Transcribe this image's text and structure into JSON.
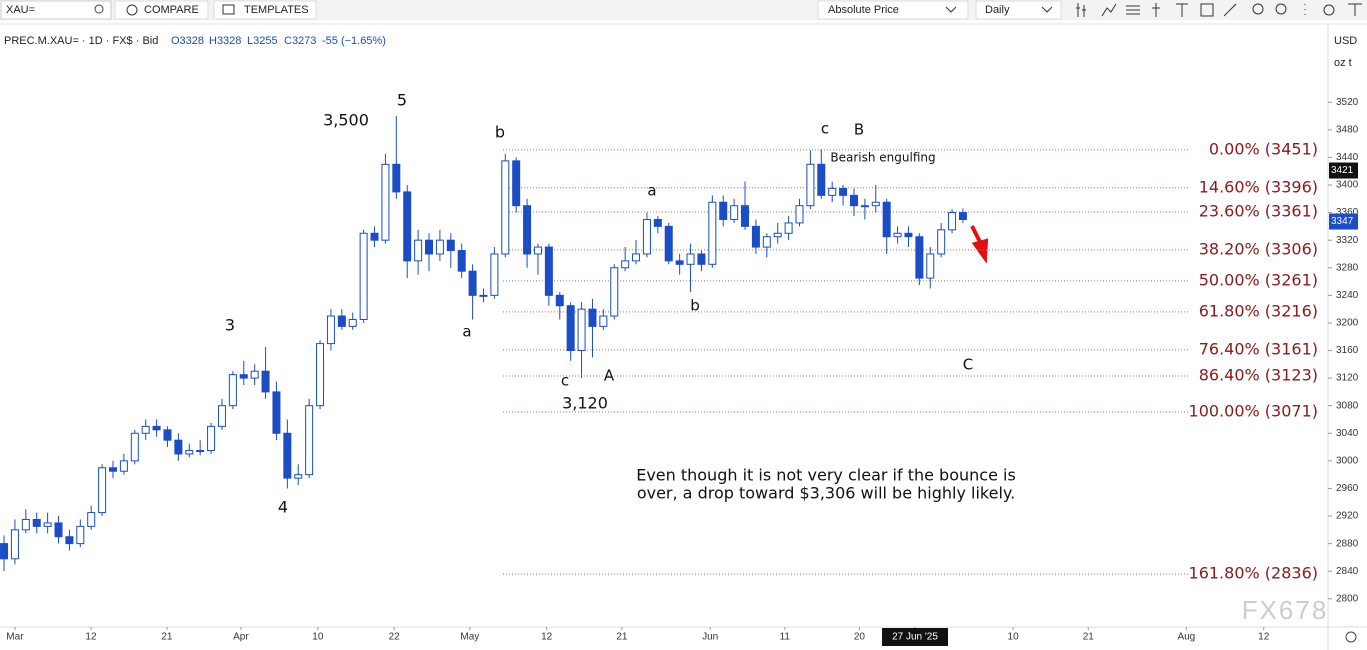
{
  "toolbar": {
    "symbol": "XAU=",
    "compare": "COMPARE",
    "templates": "TEMPLATES",
    "price_mode": "Absolute Price",
    "interval": "Daily",
    "currency": "USD",
    "unit": "oz t"
  },
  "legend": {
    "instrument": "PREC.M.XAU= · 1D · FX$ · Bid",
    "open": "O3328",
    "high": "H3328",
    "low": "L3255",
    "close": "C3273",
    "change": "-55 (−1.65%)"
  },
  "watermark": "FX678",
  "chart_data": {
    "type": "candlestick",
    "color": "#1a4dc6",
    "grid": false,
    "ylim": [
      2762,
      3632
    ],
    "yticks": [
      2800,
      2840,
      2880,
      2920,
      2960,
      3000,
      3040,
      3080,
      3120,
      3160,
      3200,
      3240,
      3280,
      3320,
      3360,
      3400,
      3440,
      3480,
      3520
    ],
    "xlim": [
      -0.37,
      121.5
    ],
    "xticks": [
      {
        "value": 1.0,
        "label": "Mar"
      },
      {
        "value": 7.98,
        "label": "12"
      },
      {
        "value": 14.95,
        "label": "21"
      },
      {
        "value": 21.74,
        "label": "Apr"
      },
      {
        "value": 28.8,
        "label": "10"
      },
      {
        "value": 35.8,
        "label": "22"
      },
      {
        "value": 42.75,
        "label": "May"
      },
      {
        "value": 49.8,
        "label": "12"
      },
      {
        "value": 56.7,
        "label": "21"
      },
      {
        "value": 64.8,
        "label": "Jun"
      },
      {
        "value": 71.65,
        "label": "11"
      },
      {
        "value": 78.5,
        "label": "20"
      },
      {
        "value": 83.6,
        "label": "27 Jun '25",
        "highlight": true
      },
      {
        "value": 92.6,
        "label": "10"
      },
      {
        "value": 99.5,
        "label": "21"
      },
      {
        "value": 108.5,
        "label": "Aug"
      },
      {
        "value": 115.6,
        "label": "12"
      }
    ],
    "ohlc": [
      [
        2880,
        2892,
        2840,
        2858
      ],
      [
        2858,
        2915,
        2850,
        2900
      ],
      [
        2900,
        2930,
        2895,
        2915
      ],
      [
        2915,
        2925,
        2895,
        2905
      ],
      [
        2905,
        2925,
        2895,
        2910
      ],
      [
        2910,
        2920,
        2880,
        2890
      ],
      [
        2890,
        2900,
        2870,
        2880
      ],
      [
        2880,
        2915,
        2875,
        2905
      ],
      [
        2905,
        2935,
        2900,
        2925
      ],
      [
        2925,
        2995,
        2920,
        2990
      ],
      [
        2990,
        3000,
        2975,
        2985
      ],
      [
        2985,
        3010,
        2980,
        3000
      ],
      [
        3000,
        3045,
        2995,
        3040
      ],
      [
        3040,
        3060,
        3030,
        3050
      ],
      [
        3050,
        3060,
        3035,
        3045
      ],
      [
        3045,
        3050,
        3020,
        3030
      ],
      [
        3030,
        3040,
        3000,
        3010
      ],
      [
        3010,
        3025,
        3005,
        3015
      ],
      [
        3015,
        3030,
        3008,
        3015
      ],
      [
        3015,
        3055,
        3010,
        3050
      ],
      [
        3050,
        3090,
        3045,
        3080
      ],
      [
        3080,
        3130,
        3075,
        3125
      ],
      [
        3125,
        3145,
        3110,
        3120
      ],
      [
        3120,
        3140,
        3110,
        3130
      ],
      [
        3130,
        3165,
        3090,
        3100
      ],
      [
        3100,
        3115,
        3030,
        3040
      ],
      [
        3040,
        3060,
        2960,
        2975
      ],
      [
        2975,
        2995,
        2965,
        2980
      ],
      [
        2980,
        3090,
        2975,
        3080
      ],
      [
        3080,
        3175,
        3075,
        3170
      ],
      [
        3170,
        3220,
        3160,
        3210
      ],
      [
        3210,
        3220,
        3190,
        3195
      ],
      [
        3195,
        3215,
        3190,
        3205
      ],
      [
        3205,
        3335,
        3200,
        3330
      ],
      [
        3330,
        3340,
        3310,
        3320
      ],
      [
        3320,
        3445,
        3315,
        3430
      ],
      [
        3430,
        3500,
        3380,
        3390
      ],
      [
        3390,
        3400,
        3265,
        3290
      ],
      [
        3290,
        3335,
        3270,
        3320
      ],
      [
        3320,
        3330,
        3275,
        3300
      ],
      [
        3300,
        3335,
        3290,
        3320
      ],
      [
        3320,
        3330,
        3280,
        3305
      ],
      [
        3305,
        3315,
        3265,
        3275
      ],
      [
        3275,
        3285,
        3205,
        3240
      ],
      [
        3240,
        3250,
        3230,
        3240
      ],
      [
        3240,
        3310,
        3235,
        3300
      ],
      [
        3300,
        3445,
        3295,
        3435
      ],
      [
        3435,
        3440,
        3360,
        3370
      ],
      [
        3370,
        3380,
        3280,
        3300
      ],
      [
        3300,
        3315,
        3270,
        3310
      ],
      [
        3310,
        3315,
        3225,
        3240
      ],
      [
        3240,
        3245,
        3205,
        3225
      ],
      [
        3225,
        3230,
        3145,
        3160
      ],
      [
        3160,
        3230,
        3120,
        3220
      ],
      [
        3220,
        3235,
        3150,
        3195
      ],
      [
        3195,
        3220,
        3190,
        3210
      ],
      [
        3210,
        3285,
        3205,
        3280
      ],
      [
        3280,
        3310,
        3275,
        3290
      ],
      [
        3290,
        3320,
        3285,
        3300
      ],
      [
        3300,
        3360,
        3295,
        3350
      ],
      [
        3350,
        3355,
        3330,
        3340
      ],
      [
        3340,
        3345,
        3285,
        3290
      ],
      [
        3290,
        3300,
        3270,
        3285
      ],
      [
        3285,
        3315,
        3245,
        3300
      ],
      [
        3300,
        3305,
        3275,
        3285
      ],
      [
        3285,
        3385,
        3280,
        3375
      ],
      [
        3375,
        3385,
        3340,
        3350
      ],
      [
        3350,
        3380,
        3345,
        3370
      ],
      [
        3370,
        3405,
        3335,
        3340
      ],
      [
        3340,
        3350,
        3300,
        3310
      ],
      [
        3310,
        3330,
        3295,
        3325
      ],
      [
        3325,
        3345,
        3315,
        3330
      ],
      [
        3330,
        3355,
        3320,
        3345
      ],
      [
        3345,
        3380,
        3340,
        3370
      ],
      [
        3370,
        3450,
        3365,
        3430
      ],
      [
        3430,
        3452,
        3380,
        3385
      ],
      [
        3385,
        3405,
        3375,
        3395
      ],
      [
        3395,
        3400,
        3370,
        3385
      ],
      [
        3385,
        3395,
        3355,
        3370
      ],
      [
        3370,
        3380,
        3350,
        3370
      ],
      [
        3370,
        3400,
        3360,
        3375
      ],
      [
        3375,
        3380,
        3300,
        3325
      ],
      [
        3325,
        3340,
        3315,
        3330
      ],
      [
        3330,
        3340,
        3310,
        3325
      ],
      [
        3325,
        3330,
        3255,
        3265
      ],
      [
        3265,
        3310,
        3250,
        3300
      ],
      [
        3300,
        3345,
        3295,
        3335
      ],
      [
        3335,
        3365,
        3330,
        3360
      ],
      [
        3360,
        3366,
        3345,
        3350
      ]
    ],
    "fib_levels": [
      {
        "value": 3451,
        "label": "0.00% (3451)"
      },
      {
        "value": 3396,
        "label": "14.60% (3396)"
      },
      {
        "value": 3361,
        "label": "23.60% (3361)"
      },
      {
        "value": 3306,
        "label": "38.20% (3306)"
      },
      {
        "value": 3261,
        "label": "50.00% (3261)"
      },
      {
        "value": 3216,
        "label": "61.80% (3216)"
      },
      {
        "value": 3161,
        "label": "76.40% (3161)"
      },
      {
        "value": 3123,
        "label": "86.40% (3123)"
      },
      {
        "value": 3071,
        "label": "100.00% (3071)"
      },
      {
        "value": 2836,
        "label": "161.80% (2836)"
      }
    ],
    "price_markers": [
      {
        "value": 3421,
        "color": "#111111"
      },
      {
        "value": 3347,
        "color": "#1a4dc6"
      }
    ],
    "annotations": [
      "5",
      "3,500",
      "b",
      "c",
      "B",
      "Bearish engulfing",
      "a",
      "3",
      "a",
      "b",
      "c",
      "A",
      "3,120",
      "4",
      "C"
    ],
    "note": [
      "Even though it is not very clear if the bounce is",
      "over, a drop toward $3,306 will be highly likely."
    ]
  }
}
